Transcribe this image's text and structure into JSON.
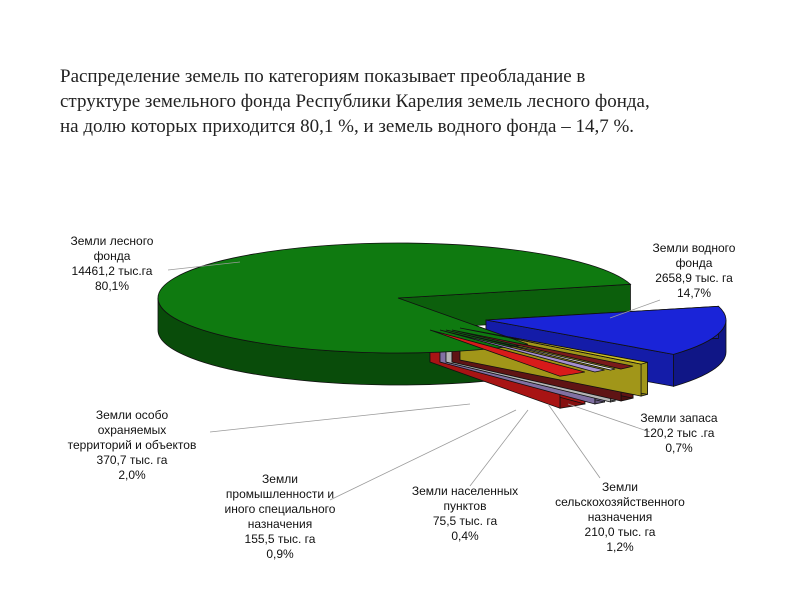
{
  "intro": {
    "lines": [
      "Распределение земель по категориям показывает преобладание в",
      "структуре земельного фонда Республики Карелия земель лесного фонда,",
      "на долю которых приходится 80,1 %, и земель водного фонда – 14,7 %."
    ]
  },
  "chart_data": {
    "type": "pie",
    "title": "",
    "unit": "тыс. га",
    "slices": [
      {
        "name_lines": [
          "Земли лесного",
          "фонда"
        ],
        "value_label": "14461,2 тыс.га",
        "percent_label": "80,1%",
        "value": 14461.2,
        "percent": 80.1,
        "color": "#0f7a10"
      },
      {
        "name_lines": [
          "Земли водного",
          "фонда"
        ],
        "value_label": "2658,9 тыс. га",
        "percent_label": "14,7%",
        "value": 2658.9,
        "percent": 14.7,
        "color": "#1a24d8"
      },
      {
        "name_lines": [
          "Земли запаса"
        ],
        "value_label": "120,2 тыс .га",
        "percent_label": "0,7%",
        "value": 120.2,
        "percent": 0.7,
        "color": "#cfc020"
      },
      {
        "name_lines": [
          "Земли",
          "сельскохозяйственного",
          "назначения"
        ],
        "value_label": "210,0 тыс. га",
        "percent_label": "1,2%",
        "value": 210.0,
        "percent": 1.2,
        "color": "#7a1a1a"
      },
      {
        "name_lines": [
          "Земли населенных",
          "пунктов"
        ],
        "value_label": "75,5 тыс. га",
        "percent_label": "0,4%",
        "value": 75.5,
        "percent": 0.4,
        "color": "#e8e8e8"
      },
      {
        "name_lines": [
          "Земли",
          "промышленности и",
          "иного специального",
          "назначения"
        ],
        "value_label": "155,5 тыс. га",
        "percent_label": "0,9%",
        "value": 155.5,
        "percent": 0.9,
        "color": "#a58fd0"
      },
      {
        "name_lines": [
          "Земли особо",
          "охраняемых",
          "территорий и объектов"
        ],
        "value_label": "370,7 тыс. га",
        "percent_label": "2,0%",
        "value": 370.7,
        "percent": 2.0,
        "color": "#d81a1a"
      }
    ]
  }
}
